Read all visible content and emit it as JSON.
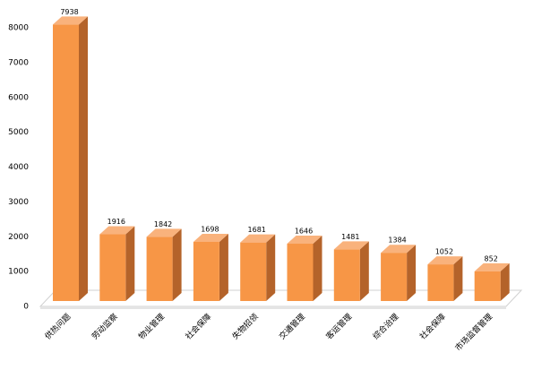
{
  "chart_data": {
    "type": "bar3d",
    "categories": [
      "供热问题",
      "劳动监察",
      "物业管理",
      "社会保障",
      "失物招领",
      "交通管理",
      "客运管理",
      "综合治理",
      "社会保障",
      "市场监督管理"
    ],
    "values": [
      7938,
      1916,
      1842,
      1698,
      1681,
      1646,
      1481,
      1384,
      1052,
      852
    ],
    "color": "#f79646",
    "ylim": [
      0,
      8000
    ],
    "yticks": [
      0,
      1000,
      2000,
      3000,
      4000,
      5000,
      6000,
      7000,
      8000
    ],
    "grid": false
  }
}
